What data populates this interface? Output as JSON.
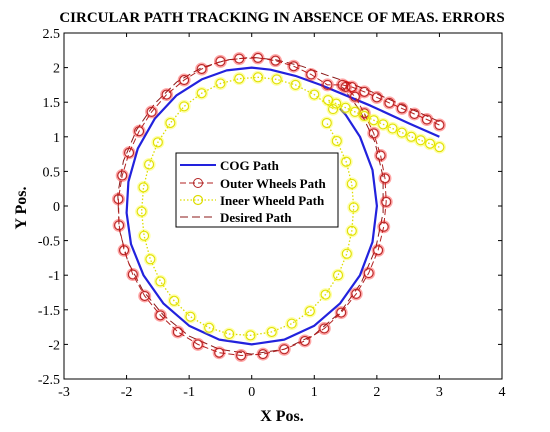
{
  "chart_data": {
    "type": "line",
    "title": "CIRCULAR PATH TRACKING IN ABSENCE OF MEAS. ERRORS",
    "xlabel": "X Pos.",
    "ylabel": "Y Pos.",
    "xlim": [
      -3,
      4
    ],
    "ylim": [
      -2.5,
      2.5
    ],
    "xticks": [
      -3,
      -2,
      -1,
      0,
      1,
      2,
      3,
      4
    ],
    "yticks": [
      -2.5,
      -2,
      -1.5,
      -1,
      -0.5,
      0,
      0.5,
      1,
      1.5,
      2,
      2.5
    ],
    "grid": false,
    "legend_position": "center",
    "colors": {
      "cog": "#2222dd",
      "outer": "#b22222",
      "outer_marker_fill": "#ff0000",
      "inner": "#dddd00",
      "inner_marker_fill": "#ffff00",
      "desired": "#8b1a1a"
    },
    "series": [
      {
        "name": "COG Path",
        "style": "solid",
        "points": [
          [
            3.0,
            1.0
          ],
          [
            2.5,
            1.2
          ],
          [
            1.9,
            1.45
          ],
          [
            1.5,
            1.6
          ],
          [
            1.1,
            1.75
          ],
          [
            0.7,
            1.88
          ],
          [
            0.3,
            1.97
          ],
          [
            0.0,
            2.0
          ],
          [
            -0.4,
            1.96
          ],
          [
            -0.8,
            1.83
          ],
          [
            -1.2,
            1.6
          ],
          [
            -1.55,
            1.26
          ],
          [
            -1.82,
            0.83
          ],
          [
            -1.97,
            0.35
          ],
          [
            -2.0,
            -0.1
          ],
          [
            -1.93,
            -0.55
          ],
          [
            -1.73,
            -1.0
          ],
          [
            -1.41,
            -1.41
          ],
          [
            -1.0,
            -1.73
          ],
          [
            -0.52,
            -1.93
          ],
          [
            0.0,
            -2.0
          ],
          [
            0.52,
            -1.93
          ],
          [
            1.0,
            -1.73
          ],
          [
            1.41,
            -1.41
          ],
          [
            1.73,
            -1.0
          ],
          [
            1.93,
            -0.52
          ],
          [
            2.0,
            0.0
          ],
          [
            1.93,
            0.52
          ],
          [
            1.73,
            1.0
          ],
          [
            1.5,
            1.32
          ],
          [
            1.41,
            1.41
          ]
        ]
      },
      {
        "name": "Outer Wheels Path",
        "style": "dashed-circle-markers",
        "points": [
          [
            3.0,
            1.17
          ],
          [
            2.8,
            1.25
          ],
          [
            2.6,
            1.33
          ],
          [
            2.4,
            1.41
          ],
          [
            2.2,
            1.49
          ],
          [
            2.0,
            1.57
          ],
          [
            1.8,
            1.65
          ],
          [
            1.6,
            1.72
          ],
          [
            1.45,
            1.75
          ],
          [
            1.21,
            1.75
          ],
          [
            0.95,
            1.9
          ],
          [
            0.67,
            2.02
          ],
          [
            0.38,
            2.1
          ],
          [
            0.1,
            2.14
          ],
          [
            -0.2,
            2.13
          ],
          [
            -0.5,
            2.09
          ],
          [
            -0.8,
            1.98
          ],
          [
            -1.08,
            1.82
          ],
          [
            -1.36,
            1.61
          ],
          [
            -1.6,
            1.36
          ],
          [
            -1.8,
            1.08
          ],
          [
            -1.96,
            0.77
          ],
          [
            -2.07,
            0.44
          ],
          [
            -2.13,
            0.1
          ],
          [
            -2.12,
            -0.28
          ],
          [
            -2.04,
            -0.64
          ],
          [
            -1.9,
            -0.99
          ],
          [
            -1.71,
            -1.3
          ],
          [
            -1.46,
            -1.58
          ],
          [
            -1.18,
            -1.82
          ],
          [
            -0.86,
            -2.0
          ],
          [
            -0.52,
            -2.12
          ],
          [
            -0.17,
            -2.16
          ],
          [
            0.18,
            -2.14
          ],
          [
            0.52,
            -2.07
          ],
          [
            0.85,
            -1.95
          ],
          [
            1.16,
            -1.77
          ],
          [
            1.43,
            -1.54
          ],
          [
            1.67,
            -1.27
          ],
          [
            1.87,
            -0.97
          ],
          [
            2.02,
            -0.64
          ],
          [
            2.11,
            -0.3
          ],
          [
            2.15,
            0.06
          ],
          [
            2.13,
            0.4
          ],
          [
            2.06,
            0.73
          ],
          [
            1.95,
            1.05
          ],
          [
            1.8,
            1.34
          ],
          [
            1.65,
            1.58
          ],
          [
            1.5,
            1.72
          ]
        ]
      },
      {
        "name": "Ineer Wheeld Path",
        "style": "dotted-circle-markers",
        "points": [
          [
            3.0,
            0.85
          ],
          [
            2.85,
            0.9
          ],
          [
            2.7,
            0.95
          ],
          [
            2.55,
            1.0
          ],
          [
            2.4,
            1.06
          ],
          [
            2.25,
            1.12
          ],
          [
            2.1,
            1.18
          ],
          [
            1.95,
            1.24
          ],
          [
            1.8,
            1.3
          ],
          [
            1.65,
            1.36
          ],
          [
            1.5,
            1.42
          ],
          [
            1.35,
            1.48
          ],
          [
            1.22,
            1.53
          ],
          [
            1.3,
            1.4
          ],
          [
            1.0,
            1.61
          ],
          [
            0.7,
            1.75
          ],
          [
            0.4,
            1.83
          ],
          [
            0.1,
            1.86
          ],
          [
            -0.2,
            1.84
          ],
          [
            -0.5,
            1.77
          ],
          [
            -0.8,
            1.63
          ],
          [
            -1.08,
            1.44
          ],
          [
            -1.3,
            1.2
          ],
          [
            -1.5,
            0.92
          ],
          [
            -1.64,
            0.6
          ],
          [
            -1.73,
            0.27
          ],
          [
            -1.76,
            -0.08
          ],
          [
            -1.72,
            -0.43
          ],
          [
            -1.62,
            -0.77
          ],
          [
            -1.46,
            -1.09
          ],
          [
            -1.24,
            -1.37
          ],
          [
            -0.98,
            -1.6
          ],
          [
            -0.68,
            -1.76
          ],
          [
            -0.36,
            -1.85
          ],
          [
            -0.02,
            -1.87
          ],
          [
            0.32,
            -1.82
          ],
          [
            0.64,
            -1.7
          ],
          [
            0.93,
            -1.52
          ],
          [
            1.18,
            -1.28
          ],
          [
            1.38,
            -1.0
          ],
          [
            1.52,
            -0.69
          ],
          [
            1.6,
            -0.36
          ],
          [
            1.63,
            -0.02
          ],
          [
            1.6,
            0.32
          ],
          [
            1.51,
            0.64
          ],
          [
            1.36,
            0.94
          ],
          [
            1.2,
            1.2
          ]
        ]
      },
      {
        "name": "Desired Path",
        "style": "dashed",
        "points": [
          [
            3.0,
            1.22
          ],
          [
            2.5,
            1.42
          ],
          [
            2.0,
            1.62
          ],
          [
            1.5,
            1.8
          ],
          [
            1.2,
            1.89
          ],
          [
            0.8,
            2.02
          ],
          [
            0.4,
            2.11
          ],
          [
            0.0,
            2.15
          ],
          [
            -0.4,
            2.11
          ],
          [
            -0.8,
            2.0
          ],
          [
            -1.2,
            1.79
          ],
          [
            -1.55,
            1.48
          ],
          [
            -1.84,
            1.1
          ],
          [
            -2.05,
            0.65
          ],
          [
            -2.14,
            0.17
          ],
          [
            -2.12,
            -0.33
          ],
          [
            -1.98,
            -0.8
          ],
          [
            -1.74,
            -1.22
          ],
          [
            -1.41,
            -1.58
          ],
          [
            -1.0,
            -1.88
          ],
          [
            -0.52,
            -2.07
          ],
          [
            0.0,
            -2.14
          ],
          [
            0.52,
            -2.07
          ],
          [
            1.0,
            -1.86
          ],
          [
            1.42,
            -1.53
          ],
          [
            1.75,
            -1.11
          ],
          [
            1.98,
            -0.62
          ],
          [
            2.1,
            -0.1
          ],
          [
            2.1,
            0.42
          ],
          [
            1.97,
            0.92
          ],
          [
            1.73,
            1.38
          ],
          [
            1.45,
            1.72
          ]
        ]
      }
    ]
  }
}
